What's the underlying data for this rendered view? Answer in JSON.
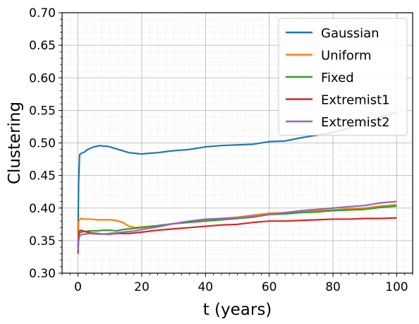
{
  "chart_data": {
    "type": "line",
    "xlabel": "t (years)",
    "ylabel": "Clustering",
    "xlim": [
      -5,
      105
    ],
    "ylim": [
      0.3,
      0.7
    ],
    "xticks": [
      0,
      20,
      40,
      60,
      80,
      100
    ],
    "yticks": [
      0.3,
      0.35,
      0.4,
      0.45,
      0.5,
      0.55,
      0.6,
      0.65,
      0.7
    ],
    "xtick_labels": [
      "0",
      "20",
      "40",
      "60",
      "80",
      "100"
    ],
    "ytick_labels": [
      "0.30",
      "0.35",
      "0.40",
      "0.45",
      "0.50",
      "0.55",
      "0.60",
      "0.65",
      "0.70"
    ],
    "grid": true,
    "legend_position": "top-right",
    "series": [
      {
        "name": "Gaussian",
        "color": "#1f77b4",
        "x": [
          0,
          0.2,
          0.5,
          1,
          2,
          3,
          4,
          5,
          6,
          7,
          8,
          9,
          10,
          12,
          14,
          16,
          18,
          20,
          22,
          25,
          28,
          30,
          35,
          40,
          45,
          50,
          55,
          60,
          65,
          70,
          75,
          80,
          85,
          90,
          95,
          100
        ],
        "y": [
          0.36,
          0.44,
          0.482,
          0.484,
          0.486,
          0.49,
          0.492,
          0.494,
          0.495,
          0.496,
          0.495,
          0.495,
          0.494,
          0.491,
          0.488,
          0.485,
          0.484,
          0.483,
          0.484,
          0.485,
          0.487,
          0.488,
          0.49,
          0.494,
          0.496,
          0.497,
          0.498,
          0.502,
          0.503,
          0.508,
          0.512,
          0.516,
          0.523,
          0.532,
          0.54,
          0.547
        ]
      },
      {
        "name": "Uniform",
        "color": "#ff7f0e",
        "x": [
          0,
          0.2,
          0.5,
          1,
          2,
          4,
          6,
          8,
          10,
          12,
          14,
          16,
          18,
          20,
          25,
          30,
          35,
          40,
          45,
          50,
          55,
          60,
          65,
          70,
          75,
          80,
          85,
          90,
          95,
          100
        ],
        "y": [
          0.34,
          0.38,
          0.382,
          0.384,
          0.383,
          0.383,
          0.382,
          0.382,
          0.382,
          0.381,
          0.378,
          0.372,
          0.37,
          0.371,
          0.373,
          0.376,
          0.38,
          0.382,
          0.384,
          0.386,
          0.389,
          0.392,
          0.393,
          0.394,
          0.396,
          0.397,
          0.399,
          0.4,
          0.403,
          0.405
        ]
      },
      {
        "name": "Fixed",
        "color": "#2ca02c",
        "x": [
          0,
          0.2,
          0.5,
          1,
          2,
          4,
          6,
          8,
          10,
          12,
          14,
          16,
          18,
          20,
          25,
          30,
          35,
          40,
          45,
          50,
          55,
          60,
          65,
          70,
          75,
          80,
          85,
          90,
          95,
          100
        ],
        "y": [
          0.34,
          0.36,
          0.362,
          0.363,
          0.364,
          0.365,
          0.365,
          0.366,
          0.366,
          0.365,
          0.367,
          0.368,
          0.369,
          0.37,
          0.373,
          0.376,
          0.378,
          0.38,
          0.382,
          0.384,
          0.386,
          0.39,
          0.391,
          0.393,
          0.394,
          0.396,
          0.397,
          0.398,
          0.401,
          0.403
        ]
      },
      {
        "name": "Extremist1",
        "color": "#d62728",
        "x": [
          0,
          0.2,
          0.5,
          1,
          2,
          4,
          6,
          8,
          10,
          12,
          14,
          16,
          18,
          20,
          25,
          30,
          35,
          40,
          45,
          50,
          55,
          60,
          65,
          70,
          75,
          80,
          85,
          90,
          95,
          100
        ],
        "y": [
          0.33,
          0.355,
          0.365,
          0.366,
          0.364,
          0.362,
          0.361,
          0.36,
          0.36,
          0.361,
          0.361,
          0.361,
          0.362,
          0.363,
          0.366,
          0.368,
          0.37,
          0.372,
          0.374,
          0.375,
          0.378,
          0.38,
          0.38,
          0.381,
          0.382,
          0.383,
          0.383,
          0.384,
          0.384,
          0.385
        ]
      },
      {
        "name": "Extremist2",
        "color": "#9467bd",
        "x": [
          0,
          0.2,
          0.5,
          1,
          2,
          4,
          6,
          8,
          10,
          12,
          14,
          16,
          18,
          20,
          25,
          30,
          35,
          40,
          45,
          50,
          55,
          60,
          65,
          70,
          75,
          80,
          85,
          90,
          95,
          100
        ],
        "y": [
          0.335,
          0.35,
          0.357,
          0.359,
          0.36,
          0.361,
          0.36,
          0.36,
          0.361,
          0.362,
          0.363,
          0.364,
          0.365,
          0.367,
          0.371,
          0.376,
          0.38,
          0.383,
          0.384,
          0.385,
          0.387,
          0.39,
          0.393,
          0.396,
          0.398,
          0.4,
          0.402,
          0.404,
          0.408,
          0.41
        ]
      }
    ]
  }
}
